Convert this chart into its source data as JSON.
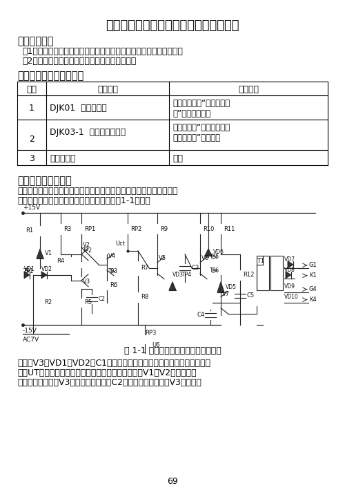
{
  "title": "实验一　　锅齿波同步移相触发电路实验",
  "section1_title": "一、实验目的",
  "section1_item1": "（1）加深理解锅齿波同步移相触发电路的工作原理及各元件的作用。",
  "section1_item2": "（2）掌握锅齿波同步移相触发电路的调试方法。",
  "section2_title": "二、实验所需挂件及附件",
  "th0": "序号",
  "th1": "型　　号",
  "th2": "备　　注",
  "r1c0": "1",
  "r1c1": "DJK01  电源控制屏",
  "r1c2a": "该控制屏包含“三相电源输",
  "r1c2b": "出”等几个模块。",
  "r2c0": "2",
  "r2c1": "DJK03-1  晶闸管触发电路",
  "r2c2a": "该挂件包含“锅齿波同步移",
  "r2c2b": "相触发电路”等模块。",
  "r3c0": "3",
  "r3c1": "双踪示波器",
  "r3c2": "自备",
  "section3_title": "三、实验线路及原理",
  "s3p1": "　　锅齿波同步移相触发电路由同步检测、锅齿波形成、移相控制、脉",
  "s3p2": "冲形成、脉冲放大等环节组成，其原理图如图1-1所示。",
  "fig_caption": "图 1-1 锅齿波同步移相触发电路原理图",
  "s3p3": "　　由V3、VD1、VD2、C1等元件组成同步检测环节，其作用是利用同步",
  "s3p4": "电压UT来控制锅齿波产生的时刻及锅齿波的宽度。由V1、V2等元件组成",
  "s3p5": "的恒流源电路，当V3截止时，恒流源对C2充电形成锅齿波；当V3导通时，",
  "page_number": "69",
  "bg_color": "#ffffff"
}
